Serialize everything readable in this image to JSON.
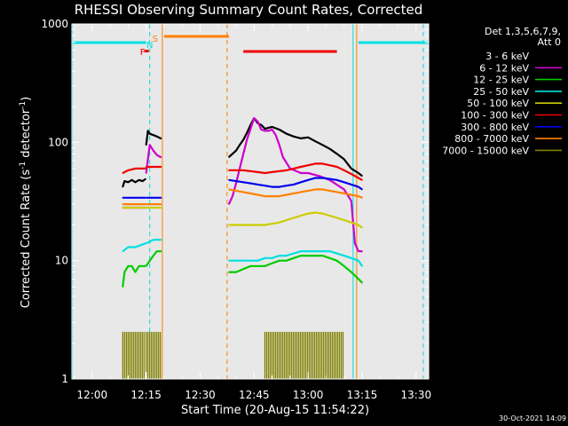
{
  "chart_data": {
    "type": "line",
    "title": "RHESSI Observing Summary Count Rates, Corrected",
    "xlabel": "Start Time (20-Aug-15 11:54:22)",
    "ylabel_parts": {
      "main": "Corrected Count Rate (s",
      "sup1": "-1",
      "mid": " detector",
      "sup2": "-1",
      "end": ")"
    },
    "y_scale": "log",
    "ylim": [
      1,
      1000
    ],
    "xlim": [
      "11:54:22",
      "13:33:30"
    ],
    "x_ticks": [
      "12:00",
      "12:15",
      "12:30",
      "12:45",
      "13:00",
      "13:15",
      "13:30"
    ],
    "y_ticks": [
      "1",
      "10",
      "100",
      "1000"
    ],
    "grid": false,
    "legend_position": "right",
    "legend_header": [
      "Det 1,3,5,6,7,9,",
      "Att 0"
    ],
    "date_stamp": "30-Oct-2021 14:09",
    "colors": {
      "background": "#000000",
      "axes": "#ffffff",
      "plot_area": "#e8e8e8"
    },
    "series": [
      {
        "name": "3 - 6 keV",
        "color": "#000000",
        "segments": [
          {
            "x": [
              "12:08:30",
              "12:09",
              "12:10",
              "12:11",
              "12:12",
              "12:13",
              "12:14",
              "12:14:50"
            ],
            "y": [
              42,
              47,
              46,
              48,
              46,
              48,
              47,
              49
            ]
          },
          {
            "x": [
              "12:15",
              "12:15:30",
              "12:16",
              "12:17",
              "12:18",
              "12:19",
              "12:19:10"
            ],
            "y": [
              95,
              125,
              118,
              115,
              112,
              108,
              108
            ]
          },
          {
            "x": [
              "12:38",
              "12:39",
              "12:40",
              "12:41",
              "12:42",
              "12:43",
              "12:44",
              "12:45",
              "12:46",
              "12:47",
              "12:48",
              "12:50",
              "12:52",
              "12:54",
              "12:56",
              "12:58",
              "13:00",
              "13:02",
              "13:04",
              "13:06",
              "13:08",
              "13:10",
              "13:12",
              "13:14",
              "13:15"
            ],
            "y": [
              75,
              80,
              85,
              95,
              105,
              120,
              140,
              160,
              145,
              140,
              130,
              135,
              128,
              118,
              112,
              108,
              110,
              102,
              95,
              88,
              80,
              72,
              60,
              55,
              52
            ]
          }
        ]
      },
      {
        "name": "6 - 12 keV",
        "color": "#cc00cc",
        "segments": [
          {
            "x": [
              "12:08:30",
              "12:10",
              "12:12",
              "12:14:50"
            ],
            "y": [
              28,
              28,
              28,
              28
            ]
          },
          {
            "x": [
              "12:15",
              "12:16",
              "12:17",
              "12:18",
              "12:19",
              "12:19:10"
            ],
            "y": [
              55,
              95,
              85,
              78,
              75,
              75
            ]
          },
          {
            "x": [
              "12:38",
              "12:39",
              "12:40",
              "12:41",
              "12:42",
              "12:43",
              "12:44",
              "12:45",
              "12:46",
              "12:47",
              "12:48",
              "12:49",
              "12:50",
              "12:51",
              "12:52",
              "12:53",
              "12:55",
              "12:58",
              "13:00",
              "13:03",
              "13:06",
              "13:10",
              "13:12",
              "13:13",
              "13:14",
              "13:15"
            ],
            "y": [
              30,
              35,
              45,
              60,
              80,
              105,
              130,
              160,
              150,
              128,
              125,
              125,
              128,
              115,
              95,
              75,
              60,
              55,
              55,
              52,
              48,
              40,
              32,
              14,
              12,
              12
            ]
          }
        ]
      },
      {
        "name": "12 - 25 keV",
        "color": "#00cc00",
        "segments": [
          {
            "x": [
              "12:08:30",
              "12:09",
              "12:10",
              "12:11",
              "12:12",
              "12:13",
              "12:14",
              "12:14:50"
            ],
            "y": [
              6,
              8,
              9,
              9,
              8,
              9,
              9,
              9
            ]
          },
          {
            "x": [
              "12:15",
              "12:16",
              "12:17",
              "12:18",
              "12:19",
              "12:19:10"
            ],
            "y": [
              9,
              10,
              11,
              12,
              12,
              12
            ]
          },
          {
            "x": [
              "12:38",
              "12:40",
              "12:42",
              "12:44",
              "12:46",
              "12:48",
              "12:50",
              "12:52",
              "12:54",
              "12:56",
              "12:58",
              "13:00",
              "13:02",
              "13:04",
              "13:06",
              "13:08",
              "13:10",
              "13:12",
              "13:14",
              "13:15"
            ],
            "y": [
              8,
              8,
              8.5,
              9,
              9,
              9,
              9.5,
              10,
              10,
              10.5,
              11,
              11,
              11,
              11,
              10.5,
              10,
              9,
              8,
              7,
              6.5
            ]
          }
        ]
      },
      {
        "name": "25 - 50 keV",
        "color": "#00e0e0",
        "segments": [
          {
            "x": [
              "12:08:30",
              "12:10",
              "12:12",
              "12:14:50"
            ],
            "y": [
              12,
              13,
              13,
              14
            ]
          },
          {
            "x": [
              "12:15",
              "12:17",
              "12:19:10"
            ],
            "y": [
              14,
              15,
              15
            ]
          },
          {
            "x": [
              "12:38",
              "12:40",
              "12:42",
              "12:44",
              "12:46",
              "12:48",
              "12:50",
              "12:52",
              "12:54",
              "12:56",
              "12:58",
              "13:00",
              "13:02",
              "13:04",
              "13:06",
              "13:08",
              "13:10",
              "13:12",
              "13:14",
              "13:15"
            ],
            "y": [
              10,
              10,
              10,
              10,
              10,
              10.5,
              10.5,
              11,
              11,
              11.5,
              12,
              12,
              12,
              12,
              12,
              11.5,
              11,
              10.5,
              10,
              9
            ]
          }
        ]
      },
      {
        "name": "50 - 100 keV",
        "color": "#cccc00",
        "segments": [
          {
            "x": [
              "12:08:30",
              "12:10",
              "12:12",
              "12:14:50"
            ],
            "y": [
              28,
              28,
              28,
              28
            ]
          },
          {
            "x": [
              "12:15",
              "12:17",
              "12:19:10"
            ],
            "y": [
              28,
              28,
              28
            ]
          },
          {
            "x": [
              "12:38",
              "12:40",
              "12:42",
              "12:44",
              "12:46",
              "12:48",
              "12:50",
              "12:52",
              "12:54",
              "12:56",
              "12:58",
              "13:00",
              "13:02",
              "13:04",
              "13:06",
              "13:08",
              "13:10",
              "13:12",
              "13:14",
              "13:15"
            ],
            "y": [
              20,
              20,
              20,
              20,
              20,
              20,
              20.5,
              21,
              22,
              23,
              24,
              25,
              25.5,
              25,
              24,
              23,
              22,
              21,
              20,
              19
            ]
          }
        ]
      },
      {
        "name": "100 - 300 keV",
        "color": "#ee0000",
        "segments": [
          {
            "x": [
              "12:08:30",
              "12:10",
              "12:12",
              "12:14:50"
            ],
            "y": [
              55,
              58,
              60,
              60
            ]
          },
          {
            "x": [
              "12:15",
              "12:17",
              "12:19:10"
            ],
            "y": [
              62,
              62,
              62
            ]
          },
          {
            "x": [
              "12:38",
              "12:40",
              "12:42",
              "12:44",
              "12:46",
              "12:48",
              "12:50",
              "12:52",
              "12:54",
              "12:56",
              "12:58",
              "13:00",
              "13:02",
              "13:04",
              "13:06",
              "13:08",
              "13:10",
              "13:12",
              "13:14",
              "13:15"
            ],
            "y": [
              58,
              58,
              58,
              57,
              56,
              55,
              56,
              57,
              58,
              60,
              62,
              64,
              66,
              66,
              64,
              62,
              58,
              54,
              50,
              48
            ]
          }
        ]
      },
      {
        "name": "300 - 800 keV",
        "color": "#0000ee",
        "segments": [
          {
            "x": [
              "12:08:30",
              "12:10",
              "12:12",
              "12:14:50"
            ],
            "y": [
              34,
              34,
              34,
              34
            ]
          },
          {
            "x": [
              "12:15",
              "12:17",
              "12:19:10"
            ],
            "y": [
              34,
              34,
              34
            ]
          },
          {
            "x": [
              "12:38",
              "12:40",
              "12:42",
              "12:44",
              "12:46",
              "12:48",
              "12:50",
              "12:52",
              "12:54",
              "12:56",
              "12:58",
              "13:00",
              "13:02",
              "13:04",
              "13:06",
              "13:08",
              "13:10",
              "13:12",
              "13:14",
              "13:15"
            ],
            "y": [
              48,
              47,
              46,
              45,
              44,
              43,
              42,
              42,
              43,
              44,
              46,
              48,
              50,
              50,
              49,
              48,
              46,
              44,
              42,
              40
            ]
          }
        ]
      },
      {
        "name": "800 - 7000 keV",
        "color": "#ff8000",
        "segments": [
          {
            "x": [
              "12:08:30",
              "12:10",
              "12:12",
              "12:14:50"
            ],
            "y": [
              30,
              30,
              30,
              30
            ]
          },
          {
            "x": [
              "12:15",
              "12:17",
              "12:19:10"
            ],
            "y": [
              30,
              30,
              30
            ]
          },
          {
            "x": [
              "12:38",
              "12:40",
              "12:42",
              "12:44",
              "12:46",
              "12:48",
              "12:50",
              "12:52",
              "12:54",
              "12:56",
              "12:58",
              "13:00",
              "13:02",
              "13:04",
              "13:06",
              "13:08",
              "13:10",
              "13:12",
              "13:14",
              "13:15"
            ],
            "y": [
              40,
              39,
              38,
              37,
              36,
              35,
              35,
              35,
              36,
              37,
              38,
              39,
              40,
              40,
              39,
              38,
              37,
              36,
              35,
              34
            ]
          }
        ]
      },
      {
        "name": "7000 - 15000 keV",
        "color": "#808000",
        "segments": [
          {
            "x": [
              "12:08:30",
              "12:10",
              "12:12",
              "12:14:50"
            ],
            "y": [
              2.5,
              2.5,
              2.5,
              2.5
            ]
          },
          {
            "x": [
              "12:15",
              "12:17",
              "12:19:10"
            ],
            "y": [
              2.5,
              2.5,
              2.5
            ]
          },
          {
            "x": [
              "12:48",
              "12:50",
              "12:52",
              "12:54",
              "12:56",
              "12:58",
              "13:00",
              "13:02",
              "13:04",
              "13:06",
              "13:08",
              "13:10"
            ],
            "y": [
              2.5,
              2.5,
              2.5,
              2.5,
              2.5,
              2.5,
              2.5,
              2.5,
              2.5,
              2.5,
              2.5,
              2.5
            ]
          }
        ]
      }
    ],
    "markers": {
      "flags": [
        {
          "label": "F",
          "color": "#ee0000",
          "x": "12:14"
        },
        {
          "label": "S",
          "color": "#ff8000",
          "x": "12:17"
        },
        {
          "label": "N",
          "color": "#00e0e0",
          "x": "12:16"
        }
      ],
      "cyan_bars": [
        {
          "x0": "11:54:22",
          "x1": "12:15"
        },
        {
          "x0": "13:14",
          "x1": "13:33:30"
        }
      ],
      "orange_bars": [
        {
          "x0": "12:20",
          "x1": "12:38"
        }
      ],
      "red_bars": [
        {
          "x0": "12:42",
          "x1": "13:08"
        }
      ],
      "cyan_solid": [
        "11:54:30",
        "13:12:30"
      ],
      "cyan_dashed": [
        "12:16",
        "13:32"
      ],
      "orange_solid": [
        "12:19:30",
        "13:13:30"
      ],
      "orange_dashed": [
        "12:37:30"
      ]
    }
  }
}
